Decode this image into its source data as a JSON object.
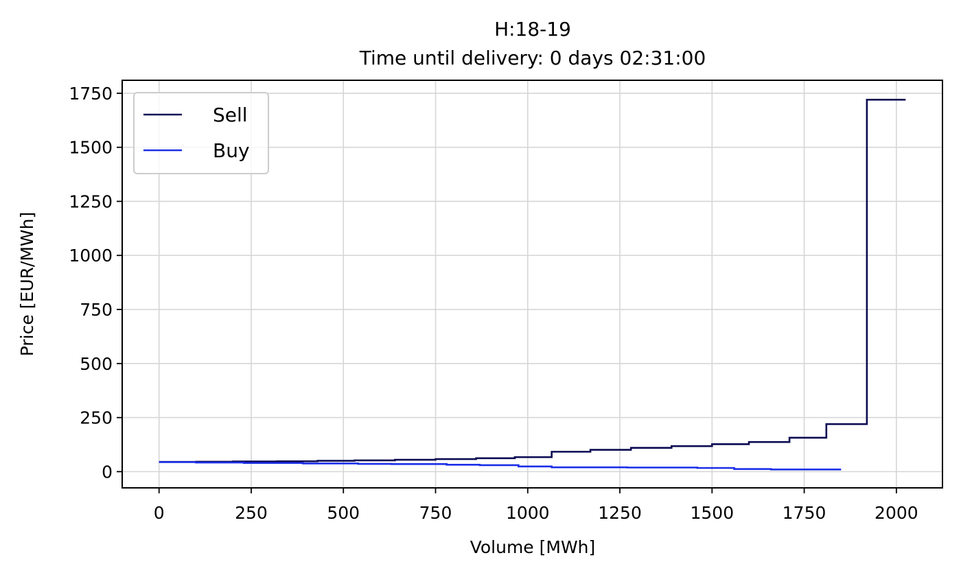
{
  "chart_data": {
    "type": "line",
    "title": "H:18-19",
    "subtitle": "Time until delivery: 0 days 02:31:00",
    "xlabel": "Volume [MWh]",
    "ylabel": "Price [EUR/MWh]",
    "xlim": [
      -100,
      2125
    ],
    "ylim": [
      -75,
      1810
    ],
    "xticks": [
      0,
      250,
      500,
      750,
      1000,
      1250,
      1500,
      1750,
      2000
    ],
    "yticks": [
      0,
      250,
      500,
      750,
      1000,
      1250,
      1500,
      1750
    ],
    "grid": true,
    "legend_position": "top-left",
    "step": "post",
    "series": [
      {
        "name": "Sell",
        "color": "#0b0a52",
        "points": [
          [
            0,
            45
          ],
          [
            100,
            46
          ],
          [
            200,
            47
          ],
          [
            320,
            48
          ],
          [
            430,
            50
          ],
          [
            530,
            52
          ],
          [
            640,
            55
          ],
          [
            750,
            58
          ],
          [
            860,
            62
          ],
          [
            965,
            67
          ],
          [
            1065,
            92
          ],
          [
            1170,
            101
          ],
          [
            1280,
            110
          ],
          [
            1390,
            118
          ],
          [
            1500,
            127
          ],
          [
            1600,
            137
          ],
          [
            1710,
            157
          ],
          [
            1810,
            220
          ],
          [
            1920,
            1720
          ],
          [
            2025,
            1720
          ]
        ]
      },
      {
        "name": "Buy",
        "color": "#1a2ee8",
        "points": [
          [
            0,
            44
          ],
          [
            100,
            42
          ],
          [
            230,
            40
          ],
          [
            390,
            38
          ],
          [
            540,
            36
          ],
          [
            630,
            35
          ],
          [
            780,
            32
          ],
          [
            870,
            30
          ],
          [
            975,
            24
          ],
          [
            1065,
            20
          ],
          [
            1270,
            19
          ],
          [
            1460,
            17
          ],
          [
            1560,
            12
          ],
          [
            1660,
            10
          ],
          [
            1850,
            10
          ]
        ]
      }
    ]
  }
}
